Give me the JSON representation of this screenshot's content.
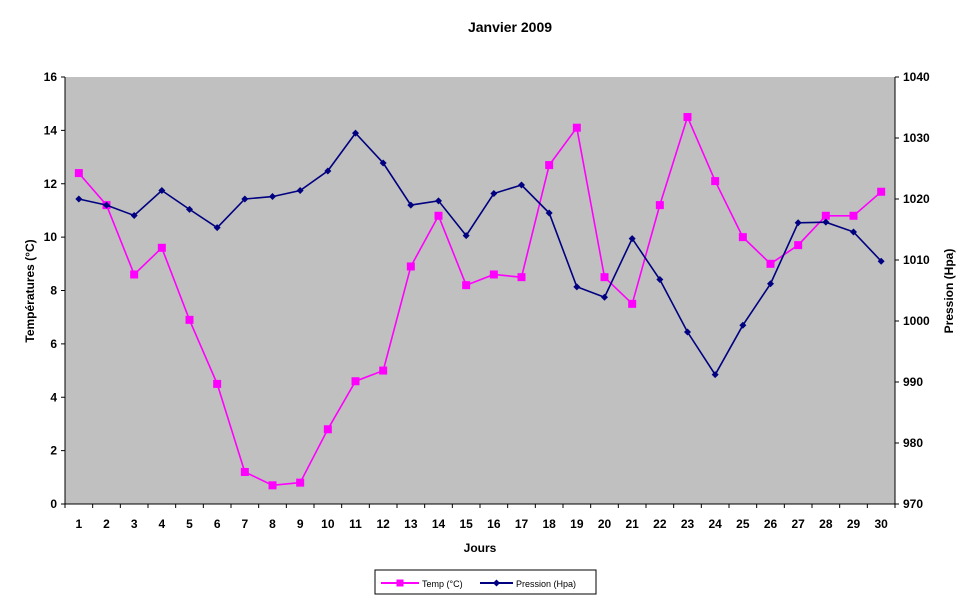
{
  "chart_data": {
    "type": "line",
    "title": "Janvier 2009",
    "xlabel": "Jours",
    "ylabel_left": "Températures (°C)",
    "ylabel_right": "Pression (Hpa)",
    "ylim_left": [
      0,
      16
    ],
    "ylim_right": [
      970,
      1040
    ],
    "yticks_left": [
      0,
      2,
      4,
      6,
      8,
      10,
      12,
      14,
      16
    ],
    "yticks_right": [
      970,
      980,
      990,
      1000,
      1010,
      1020,
      1030,
      1040
    ],
    "categories": [
      "1",
      "2",
      "3",
      "4",
      "5",
      "6",
      "7",
      "8",
      "9",
      "10",
      "11",
      "12",
      "13",
      "14",
      "15",
      "16",
      "17",
      "18",
      "19",
      "20",
      "21",
      "22",
      "23",
      "24",
      "25",
      "26",
      "27",
      "28",
      "29",
      "30"
    ],
    "plot_background": "#c0c0c0",
    "grid": false,
    "legend_position": "bottom",
    "series": [
      {
        "name": "Temp (°C)",
        "axis": "left",
        "color": "#ff00ff",
        "marker": "square",
        "values": [
          12.4,
          11.2,
          8.6,
          9.6,
          6.9,
          4.5,
          1.2,
          0.7,
          0.8,
          2.8,
          4.6,
          5.0,
          8.9,
          10.8,
          8.2,
          8.6,
          8.5,
          12.7,
          14.1,
          8.5,
          7.5,
          11.2,
          14.5,
          12.1,
          10.0,
          9.0,
          9.7,
          10.8,
          10.8,
          11.7
        ]
      },
      {
        "name": "Pression (Hpa)",
        "axis": "right",
        "color": "#000080",
        "marker": "diamond",
        "values": [
          1020,
          1019,
          1017.3,
          1021.4,
          1018.3,
          1015.3,
          1020,
          1020.4,
          1021.4,
          1024.6,
          1030.8,
          1025.9,
          1019,
          1019.7,
          1014,
          1020.9,
          1022.3,
          1017.7,
          1005.6,
          1003.9,
          1013.5,
          1006.8,
          998.2,
          991.2,
          999.3,
          1006.1,
          1016.1,
          1016.2,
          1014.6,
          1009.8
        ]
      }
    ]
  }
}
